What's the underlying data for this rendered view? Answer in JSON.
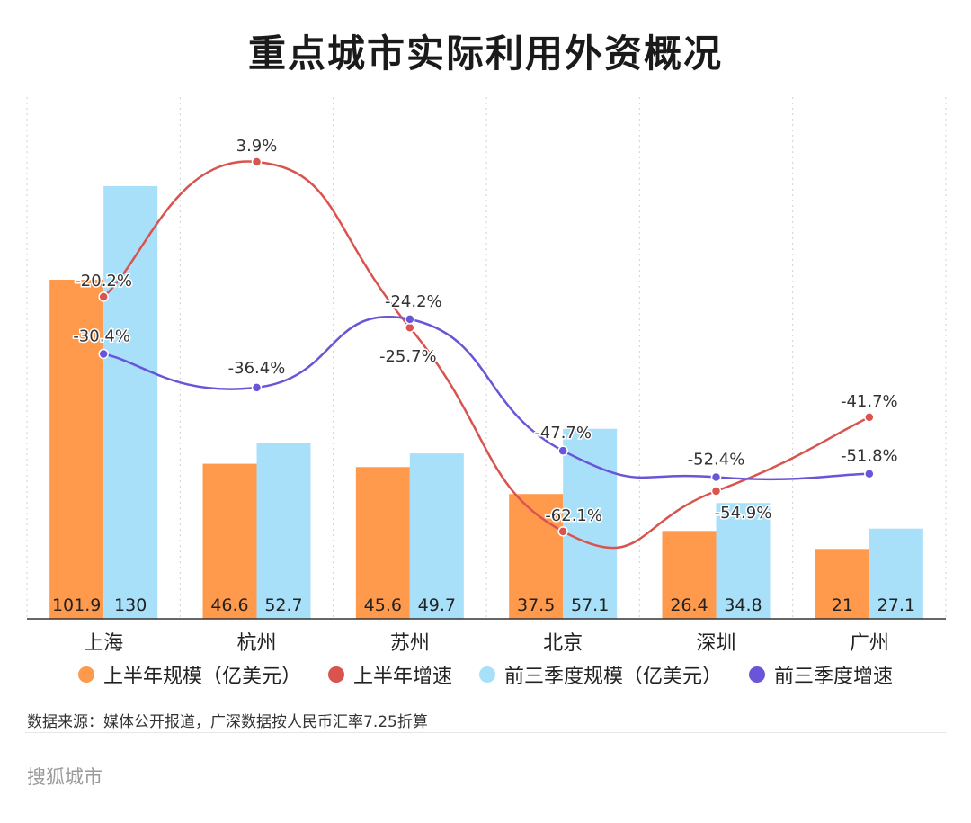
{
  "title": "重点城市实际利用外资概况",
  "source_note": "数据来源：媒体公开报道，广深数据按人民币汇率7.25折算",
  "brand": "搜狐城市",
  "colors": {
    "h1_scale": "#FF9A4D",
    "h1_growth": "#D9534F",
    "q3_scale": "#A8E0FA",
    "q3_growth": "#6A55D8",
    "axis": "#333333",
    "grid": "#d0d0d0"
  },
  "legend": [
    {
      "label": "上半年规模（亿美元）",
      "color": "#FF9A4D"
    },
    {
      "label": "上半年增速",
      "color": "#D9534F"
    },
    {
      "label": "前三季度规模（亿美元）",
      "color": "#A8E0FA"
    },
    {
      "label": "前三季度增速",
      "color": "#6A55D8"
    }
  ],
  "chart_data": {
    "type": "bar",
    "title": "重点城市实际利用外资概况",
    "categories": [
      "上海",
      "杭州",
      "苏州",
      "北京",
      "深圳",
      "广州"
    ],
    "series": [
      {
        "name": "上半年规模（亿美元）",
        "type": "bar",
        "axis": "left",
        "values": [
          101.9,
          46.6,
          45.6,
          37.5,
          26.4,
          21
        ],
        "labels": [
          "101.9",
          "46.6",
          "45.6",
          "37.5",
          "26.4",
          "21"
        ]
      },
      {
        "name": "前三季度规模（亿美元）",
        "type": "bar",
        "axis": "left",
        "values": [
          130,
          52.7,
          49.7,
          57.1,
          34.8,
          27.1
        ],
        "labels": [
          "130",
          "52.7",
          "49.7",
          "57.1",
          "34.8",
          "27.1"
        ]
      },
      {
        "name": "上半年增速",
        "type": "line",
        "axis": "right",
        "unit": "%",
        "values": [
          -20.2,
          3.9,
          -25.7,
          -62.1,
          -54.9,
          -41.7
        ],
        "labels": [
          "-20.2%",
          "3.9%",
          "-25.7%",
          "-62.1%",
          "-54.9%",
          "-41.7%"
        ]
      },
      {
        "name": "前三季度增速",
        "type": "line",
        "axis": "right",
        "unit": "%",
        "values": [
          -30.4,
          -36.4,
          -24.2,
          -47.7,
          -52.4,
          -51.8
        ],
        "labels": [
          "-30.4%",
          "-36.4%",
          "-24.2%",
          "-47.7%",
          "-52.4%",
          "-51.8%"
        ]
      }
    ],
    "ylim_left": [
      0,
      130
    ],
    "ylim_right": [
      -70,
      10
    ],
    "grid": "vertical-dotted",
    "legend_position": "bottom"
  }
}
